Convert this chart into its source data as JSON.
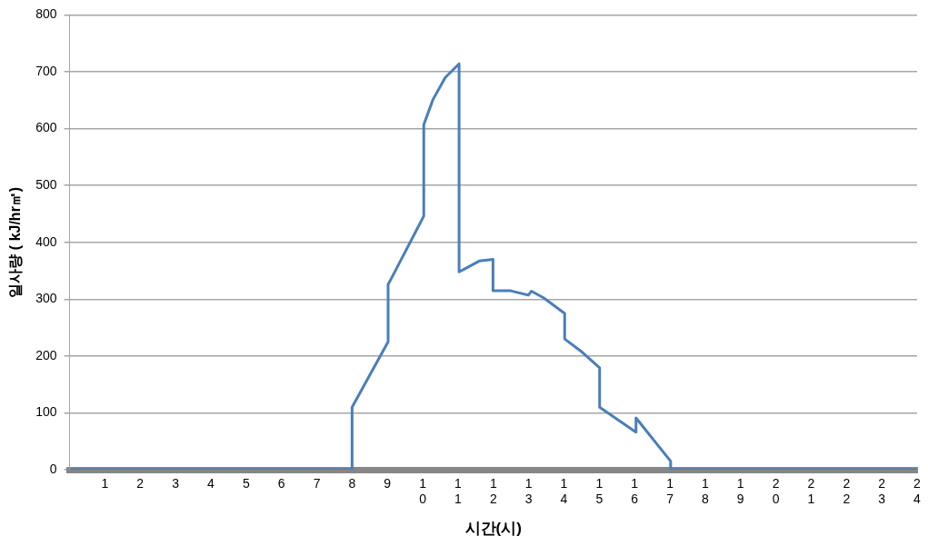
{
  "chart_data": {
    "type": "line",
    "xlabel": "시간(시)",
    "ylabel": "일사량 ( kJ/hr㎡)",
    "x": [
      0,
      8,
      8,
      9.02,
      9.02,
      9.1,
      10.03,
      10.03,
      10.29,
      10.64,
      11.03,
      11.03,
      11.6,
      11.99,
      11.99,
      12.47,
      12.99,
      13.08,
      13.43,
      14.02,
      14.02,
      14.47,
      15.01,
      15.01,
      16.04,
      16.04,
      17.02,
      17.02,
      24
    ],
    "series": [
      {
        "color": "#4a7ebb",
        "values": [
          0,
          0,
          110,
          225,
          326,
          335,
          446,
          607,
          651,
          690,
          714,
          348,
          367,
          370,
          315,
          315,
          307,
          314,
          302,
          275,
          230,
          209,
          179,
          110,
          66,
          91,
          15,
          0,
          0
        ]
      }
    ],
    "xlim": [
      0,
      24
    ],
    "xticks": [
      1,
      2,
      3,
      4,
      5,
      6,
      7,
      8,
      9,
      10,
      11,
      12,
      13,
      14,
      15,
      16,
      17,
      18,
      19,
      20,
      21,
      22,
      23,
      24
    ],
    "ylim": [
      0,
      800
    ],
    "yticks": [
      0,
      100,
      200,
      300,
      400,
      500,
      600,
      700,
      800
    ],
    "grid": "y",
    "legend": false,
    "marker": "none",
    "line_style": "solid"
  }
}
